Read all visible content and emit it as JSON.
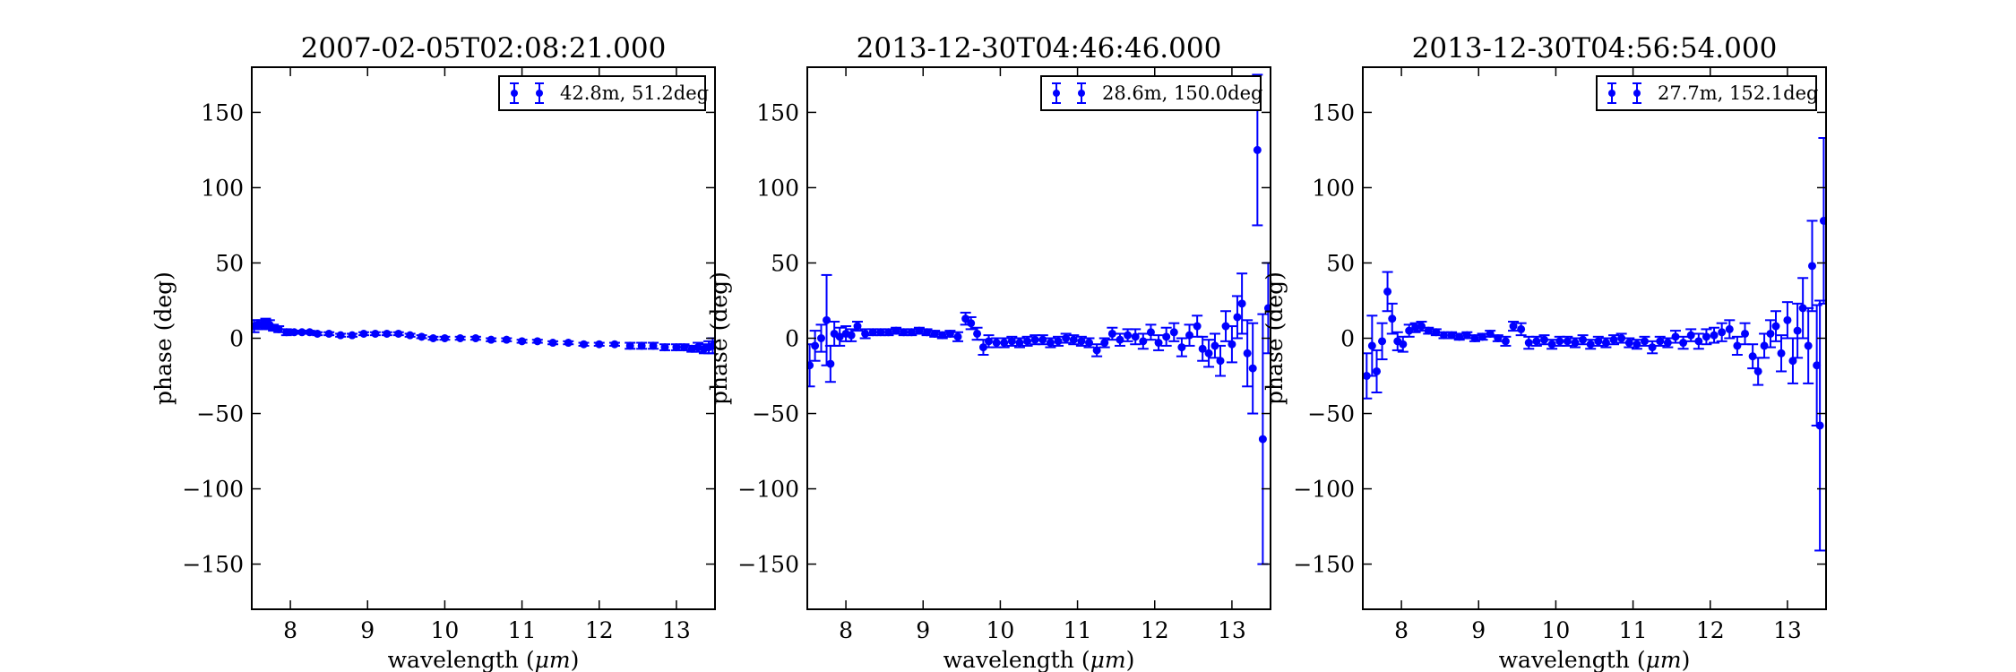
{
  "chart_data": [
    {
      "type": "scatter",
      "title": "2007-02-05T02:08:21.000",
      "xlabel_main": "wavelength (",
      "xlabel_unit": "μm",
      "xlabel_close": ")",
      "ylabel": "phase (deg)",
      "xlim": [
        7.5,
        13.5
      ],
      "ylim": [
        -180,
        180
      ],
      "xticks": [
        8,
        9,
        10,
        11,
        12,
        13
      ],
      "yticks": [
        150,
        100,
        50,
        0,
        -50,
        -100,
        -150
      ],
      "legend": "top-right",
      "grid": false,
      "color": "#0000ff",
      "series": [
        {
          "name": "42.8m, 51.2deg",
          "points": [
            [
              7.53,
              8,
              4
            ],
            [
              7.58,
              9,
              3
            ],
            [
              7.63,
              9,
              3
            ],
            [
              7.68,
              10,
              3
            ],
            [
              7.73,
              9,
              3
            ],
            [
              7.78,
              7,
              2
            ],
            [
              7.85,
              6,
              2
            ],
            [
              7.95,
              4,
              2
            ],
            [
              8.05,
              4,
              1
            ],
            [
              8.15,
              4,
              1
            ],
            [
              8.25,
              4,
              1
            ],
            [
              8.35,
              3,
              1
            ],
            [
              8.5,
              3,
              1
            ],
            [
              8.65,
              2,
              1
            ],
            [
              8.8,
              2,
              1
            ],
            [
              8.95,
              3,
              1
            ],
            [
              9.1,
              3,
              1
            ],
            [
              9.25,
              3,
              1
            ],
            [
              9.4,
              3,
              1
            ],
            [
              9.55,
              2,
              1
            ],
            [
              9.7,
              1,
              1
            ],
            [
              9.85,
              0,
              1
            ],
            [
              10.0,
              0,
              1
            ],
            [
              10.2,
              0,
              1
            ],
            [
              10.4,
              0,
              1
            ],
            [
              10.6,
              -1,
              1
            ],
            [
              10.8,
              -1,
              1
            ],
            [
              11.0,
              -2,
              1
            ],
            [
              11.2,
              -2,
              1
            ],
            [
              11.4,
              -3,
              1
            ],
            [
              11.6,
              -3,
              1
            ],
            [
              11.8,
              -4,
              1
            ],
            [
              12.0,
              -4,
              1
            ],
            [
              12.2,
              -4,
              1
            ],
            [
              12.4,
              -5,
              2
            ],
            [
              12.55,
              -5,
              2
            ],
            [
              12.7,
              -5,
              2
            ],
            [
              12.85,
              -6,
              2
            ],
            [
              13.0,
              -6,
              2
            ],
            [
              13.1,
              -6,
              2
            ],
            [
              13.2,
              -7,
              2
            ],
            [
              13.28,
              -6,
              3
            ],
            [
              13.36,
              -7,
              3
            ],
            [
              13.42,
              -6,
              4
            ],
            [
              13.47,
              -5,
              5
            ]
          ]
        }
      ]
    },
    {
      "type": "scatter",
      "title": "2013-12-30T04:46:46.000",
      "xlabel_main": "wavelength (",
      "xlabel_unit": "μm",
      "xlabel_close": ")",
      "ylabel": "phase (deg)",
      "xlim": [
        7.5,
        13.5
      ],
      "ylim": [
        -180,
        180
      ],
      "xticks": [
        8,
        9,
        10,
        11,
        12,
        13
      ],
      "yticks": [
        150,
        100,
        50,
        0,
        -50,
        -100,
        -150
      ],
      "legend": "top-right",
      "grid": false,
      "color": "#0000ff",
      "series": [
        {
          "name": "28.6m, 150.0deg",
          "points": [
            [
              7.53,
              -18,
              14
            ],
            [
              7.6,
              -5,
              10
            ],
            [
              7.68,
              0,
              9
            ],
            [
              7.75,
              12,
              30
            ],
            [
              7.8,
              -17,
              12
            ],
            [
              7.85,
              3,
              8
            ],
            [
              7.92,
              1,
              6
            ],
            [
              8.0,
              3,
              5
            ],
            [
              8.07,
              2,
              4
            ],
            [
              8.15,
              8,
              3
            ],
            [
              8.25,
              3,
              3
            ],
            [
              8.35,
              4,
              2
            ],
            [
              8.45,
              4,
              2
            ],
            [
              8.55,
              4,
              2
            ],
            [
              8.65,
              5,
              2
            ],
            [
              8.75,
              4,
              2
            ],
            [
              8.85,
              4,
              2
            ],
            [
              8.95,
              5,
              2
            ],
            [
              9.05,
              4,
              2
            ],
            [
              9.15,
              3,
              2
            ],
            [
              9.25,
              2,
              2
            ],
            [
              9.35,
              3,
              2
            ],
            [
              9.45,
              1,
              3
            ],
            [
              9.55,
              13,
              4
            ],
            [
              9.62,
              10,
              4
            ],
            [
              9.7,
              3,
              4
            ],
            [
              9.78,
              -6,
              5
            ],
            [
              9.85,
              -2,
              4
            ],
            [
              9.95,
              -3,
              3
            ],
            [
              10.05,
              -3,
              3
            ],
            [
              10.15,
              -2,
              3
            ],
            [
              10.25,
              -3,
              3
            ],
            [
              10.35,
              -2,
              3
            ],
            [
              10.45,
              -1,
              3
            ],
            [
              10.55,
              -1,
              3
            ],
            [
              10.65,
              -3,
              3
            ],
            [
              10.75,
              -2,
              3
            ],
            [
              10.85,
              0,
              3
            ],
            [
              10.95,
              -1,
              3
            ],
            [
              11.05,
              -2,
              3
            ],
            [
              11.15,
              -3,
              3
            ],
            [
              11.25,
              -8,
              4
            ],
            [
              11.35,
              -3,
              3
            ],
            [
              11.45,
              3,
              4
            ],
            [
              11.55,
              -1,
              4
            ],
            [
              11.65,
              2,
              4
            ],
            [
              11.75,
              1,
              5
            ],
            [
              11.85,
              -2,
              5
            ],
            [
              11.95,
              4,
              5
            ],
            [
              12.05,
              -3,
              5
            ],
            [
              12.15,
              1,
              6
            ],
            [
              12.25,
              4,
              6
            ],
            [
              12.35,
              -6,
              6
            ],
            [
              12.45,
              2,
              7
            ],
            [
              12.55,
              8,
              7
            ],
            [
              12.62,
              -7,
              8
            ],
            [
              12.7,
              -10,
              9
            ],
            [
              12.78,
              -5,
              8
            ],
            [
              12.85,
              -15,
              10
            ],
            [
              12.92,
              8,
              10
            ],
            [
              13.0,
              -4,
              12
            ],
            [
              13.07,
              14,
              14
            ],
            [
              13.13,
              23,
              20
            ],
            [
              13.2,
              -10,
              22
            ],
            [
              13.27,
              -20,
              30
            ],
            [
              13.33,
              125,
              50
            ],
            [
              13.4,
              -67,
              83
            ],
            [
              13.47,
              20,
              30
            ]
          ]
        }
      ]
    },
    {
      "type": "scatter",
      "title": "2013-12-30T04:56:54.000",
      "xlabel_main": "wavelength (",
      "xlabel_unit": "μm",
      "xlabel_close": ")",
      "ylabel": "phase (deg)",
      "xlim": [
        7.5,
        13.5
      ],
      "ylim": [
        -180,
        180
      ],
      "xticks": [
        8,
        9,
        10,
        11,
        12,
        13
      ],
      "yticks": [
        150,
        100,
        50,
        0,
        -50,
        -100,
        -150
      ],
      "legend": "top-right",
      "grid": false,
      "color": "#0000ff",
      "series": [
        {
          "name": "27.7m, 152.1deg",
          "points": [
            [
              7.55,
              -25,
              15
            ],
            [
              7.62,
              -5,
              20
            ],
            [
              7.68,
              -22,
              14
            ],
            [
              7.75,
              -2,
              12
            ],
            [
              7.82,
              31,
              13
            ],
            [
              7.88,
              13,
              10
            ],
            [
              7.95,
              -2,
              6
            ],
            [
              8.02,
              -4,
              5
            ],
            [
              8.1,
              5,
              4
            ],
            [
              8.18,
              7,
              3
            ],
            [
              8.26,
              8,
              3
            ],
            [
              8.35,
              5,
              2
            ],
            [
              8.45,
              4,
              2
            ],
            [
              8.55,
              2,
              2
            ],
            [
              8.65,
              2,
              2
            ],
            [
              8.75,
              1,
              2
            ],
            [
              8.85,
              2,
              2
            ],
            [
              8.95,
              0,
              2
            ],
            [
              9.05,
              1,
              2
            ],
            [
              9.15,
              3,
              2
            ],
            [
              9.25,
              0,
              2
            ],
            [
              9.35,
              -2,
              3
            ],
            [
              9.45,
              8,
              3
            ],
            [
              9.55,
              6,
              4
            ],
            [
              9.65,
              -3,
              4
            ],
            [
              9.75,
              -2,
              3
            ],
            [
              9.85,
              -1,
              3
            ],
            [
              9.95,
              -4,
              3
            ],
            [
              10.05,
              -2,
              3
            ],
            [
              10.15,
              -2,
              3
            ],
            [
              10.25,
              -3,
              3
            ],
            [
              10.35,
              -1,
              3
            ],
            [
              10.45,
              -4,
              3
            ],
            [
              10.55,
              -2,
              3
            ],
            [
              10.65,
              -3,
              3
            ],
            [
              10.75,
              -1,
              3
            ],
            [
              10.85,
              0,
              3
            ],
            [
              10.95,
              -3,
              3
            ],
            [
              11.05,
              -4,
              3
            ],
            [
              11.15,
              -2,
              3
            ],
            [
              11.25,
              -6,
              4
            ],
            [
              11.35,
              -2,
              3
            ],
            [
              11.45,
              -3,
              3
            ],
            [
              11.55,
              1,
              4
            ],
            [
              11.65,
              -3,
              4
            ],
            [
              11.75,
              2,
              4
            ],
            [
              11.85,
              -2,
              5
            ],
            [
              11.95,
              1,
              5
            ],
            [
              12.05,
              2,
              5
            ],
            [
              12.15,
              4,
              6
            ],
            [
              12.25,
              6,
              6
            ],
            [
              12.35,
              -5,
              6
            ],
            [
              12.45,
              3,
              7
            ],
            [
              12.55,
              -12,
              8
            ],
            [
              12.62,
              -22,
              9
            ],
            [
              12.7,
              -5,
              8
            ],
            [
              12.78,
              3,
              9
            ],
            [
              12.85,
              8,
              10
            ],
            [
              12.92,
              -10,
              12
            ],
            [
              13.0,
              12,
              12
            ],
            [
              13.07,
              -15,
              15
            ],
            [
              13.13,
              5,
              18
            ],
            [
              13.2,
              20,
              20
            ],
            [
              13.27,
              -5,
              25
            ],
            [
              13.32,
              48,
              30
            ],
            [
              13.38,
              -18,
              40
            ],
            [
              13.42,
              -58,
              83
            ],
            [
              13.47,
              78,
              55
            ]
          ]
        }
      ]
    }
  ]
}
